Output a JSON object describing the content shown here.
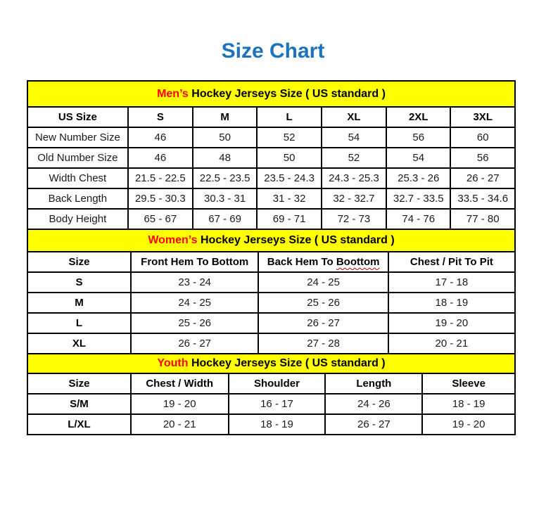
{
  "page": {
    "title": "Size Chart"
  },
  "colors": {
    "title_blue": "#1B73BE",
    "accent_red": "#FF0000",
    "banner_yellow": "#FFFF00",
    "border_black": "#000000"
  },
  "sections": [
    {
      "id": "mens",
      "banner": {
        "highlight": "Men’s",
        "rest": " Hockey Jerseys Size ( US standard )"
      },
      "columns": [
        "US Size",
        "S",
        "M",
        "L",
        "XL",
        "2XL",
        "3XL"
      ],
      "rows": [
        {
          "label": "New Number Size",
          "values": [
            "46",
            "50",
            "52",
            "54",
            "56",
            "60"
          ]
        },
        {
          "label": "Old Number Size",
          "values": [
            "46",
            "48",
            "50",
            "52",
            "54",
            "56"
          ]
        },
        {
          "label": "Width Chest",
          "values": [
            "21.5 - 22.5",
            "22.5 - 23.5",
            "23.5 - 24.3",
            "24.3 - 25.3",
            "25.3 - 26",
            "26 - 27"
          ]
        },
        {
          "label": "Back Length",
          "values": [
            "29.5 - 30.3",
            "30.3 - 31",
            "31 - 32",
            "32 - 32.7",
            "32.7 - 33.5",
            "33.5 - 34.6"
          ]
        },
        {
          "label": "Body Height",
          "values": [
            "65 - 67",
            "67 - 69",
            "69 - 71",
            "72 - 73",
            "74 - 76",
            "77 - 80"
          ]
        }
      ]
    },
    {
      "id": "womens",
      "banner": {
        "highlight": "Women’s",
        "rest": " Hockey Jerseys Size ( US standard )"
      },
      "columns": [
        "Size",
        "Front Hem To Bottom",
        {
          "label": "Back Hem To Boottom",
          "squiggle": "Boottom"
        },
        "Chest / Pit To Pit"
      ],
      "rows": [
        {
          "label": "S",
          "values": [
            "23 - 24",
            "24 - 25",
            "17 - 18"
          ]
        },
        {
          "label": "M",
          "values": [
            "24 - 25",
            "25 - 26",
            "18 - 19"
          ]
        },
        {
          "label": "L",
          "values": [
            "25 - 26",
            "26 - 27",
            "19 - 20"
          ]
        },
        {
          "label": "XL",
          "values": [
            "26 - 27",
            "27 - 28",
            "20 - 21"
          ]
        }
      ]
    },
    {
      "id": "youth",
      "banner": {
        "highlight": "Youth",
        "rest": " Hockey Jerseys Size ( US standard )"
      },
      "columns": [
        "Size",
        "Chest / Width",
        "Shoulder",
        "Length",
        "Sleeve"
      ],
      "rows": [
        {
          "label": "S/M",
          "values": [
            "19 - 20",
            "16 - 17",
            "24 - 26",
            "18 - 19"
          ]
        },
        {
          "label": "L/XL",
          "values": [
            "20 - 21",
            "18 - 19",
            "26 - 27",
            "19 - 20"
          ]
        }
      ]
    }
  ]
}
